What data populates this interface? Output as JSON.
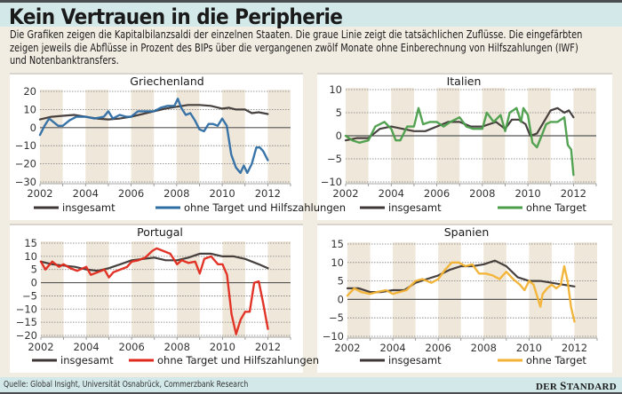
{
  "header": {
    "title": "Kein Vertrauen in die Peripherie",
    "intro_lines": [
      "Die Grafiken zeigen die Kapitalbilanzsaldi der einzelnen Staaten. Die graue Linie zeigt die tatsächlichen Zuflüsse. Die eingefärbten",
      "zeigen jeweils die Abflüsse in Prozent des BIPs über die vergangenen zwölf Monate ohne Einberechnung von Hilfszahlungen (IWF)",
      "und Notenbanktransfers."
    ]
  },
  "footer": {
    "source": "Quelle: Global Insight, Universität Osnabrück, Commerzbank Research",
    "brand_prefix": "DER",
    "brand_initial": "S",
    "brand_rest": "TANDARD"
  },
  "colors": {
    "insgesamt": "#3d3735",
    "griechenland": "#2e6da4",
    "italien": "#4a9e4a",
    "portugal": "#e02a1e",
    "spanien": "#f2b233",
    "band": "#efe8da",
    "grid": "#7a7a7a"
  },
  "chart_data": [
    {
      "type": "line",
      "title": "Griechenland",
      "xlabel": "",
      "ylabel": "",
      "xlim": [
        2002,
        2013
      ],
      "ylim": [
        -30,
        20
      ],
      "yticks": [
        20,
        10,
        0,
        -10,
        -20,
        -30
      ],
      "xticks": [
        2002,
        2004,
        2006,
        2008,
        2010,
        2012
      ],
      "grid": true,
      "legend_position": "bottom",
      "series": [
        {
          "name": "insgesamt",
          "color_key": "insgesamt",
          "x": [
            2002.0,
            2002.5,
            2003.0,
            2003.5,
            2004.0,
            2004.5,
            2005.0,
            2005.5,
            2006.0,
            2006.5,
            2007.0,
            2007.5,
            2008.0,
            2008.5,
            2009.0,
            2009.5,
            2010.0,
            2010.3,
            2010.6,
            2011.0,
            2011.3,
            2011.6,
            2012.0
          ],
          "values": [
            4.5,
            6,
            6.5,
            7,
            6,
            5,
            4.5,
            5,
            6,
            7.5,
            9,
            10.5,
            11.5,
            12.5,
            12.5,
            12,
            10.5,
            11,
            10,
            10,
            8,
            8.5,
            7.5
          ]
        },
        {
          "name": "ohne Target und Hilfszahlungen",
          "color_key": "griechenland",
          "x": [
            2002.0,
            2002.2,
            2002.4,
            2002.6,
            2002.8,
            2003.0,
            2003.3,
            2003.6,
            2004.0,
            2004.4,
            2004.8,
            2005.0,
            2005.2,
            2005.5,
            2005.8,
            2006.0,
            2006.3,
            2006.6,
            2007.0,
            2007.3,
            2007.6,
            2007.9,
            2008.05,
            2008.2,
            2008.4,
            2008.6,
            2008.8,
            2009.0,
            2009.2,
            2009.4,
            2009.6,
            2009.8,
            2010.0,
            2010.2,
            2010.4,
            2010.6,
            2010.8,
            2010.95,
            2011.1,
            2011.3,
            2011.5,
            2011.65,
            2011.8,
            2012.0
          ],
          "values": [
            -4,
            1,
            5,
            3,
            1,
            1,
            4,
            6,
            6,
            5,
            6,
            9,
            5,
            7,
            6,
            6,
            9,
            9,
            9,
            11,
            12,
            12,
            16,
            11,
            7,
            8,
            4,
            -1,
            -2,
            2,
            2,
            1,
            5,
            1,
            -15,
            -22,
            -25,
            -21,
            -25,
            -20,
            -11,
            -11,
            -13,
            -18
          ]
        }
      ]
    },
    {
      "type": "line",
      "title": "Italien",
      "xlabel": "",
      "ylabel": "",
      "xlim": [
        2002,
        2013
      ],
      "ylim": [
        -10,
        10
      ],
      "yticks": [
        10,
        5,
        0,
        -5,
        -10
      ],
      "xticks": [
        2002,
        2004,
        2006,
        2008,
        2010,
        2012
      ],
      "grid": true,
      "legend_position": "bottom",
      "series": [
        {
          "name": "insgesamt",
          "color_key": "insgesamt",
          "x": [
            2002.0,
            2002.5,
            2003.0,
            2003.5,
            2004.0,
            2004.5,
            2005.0,
            2005.5,
            2006.0,
            2006.5,
            2007.0,
            2007.5,
            2008.0,
            2008.3,
            2008.6,
            2009.0,
            2009.3,
            2009.6,
            2009.9,
            2010.1,
            2010.4,
            2010.7,
            2011.0,
            2011.3,
            2011.6,
            2011.8,
            2012.0
          ],
          "values": [
            -1,
            -0.5,
            -0.5,
            1.5,
            2,
            1.5,
            1,
            1,
            2,
            3,
            3,
            2,
            2,
            2.5,
            3,
            1.5,
            3.5,
            3.5,
            2.5,
            0,
            0.5,
            3,
            5.5,
            6,
            5,
            5.5,
            4
          ]
        },
        {
          "name": "ohne Target",
          "color_key": "italien",
          "x": [
            2002.0,
            2002.3,
            2002.6,
            2003.0,
            2003.3,
            2003.7,
            2004.0,
            2004.2,
            2004.4,
            2004.7,
            2005.0,
            2005.2,
            2005.4,
            2005.7,
            2006.0,
            2006.3,
            2006.6,
            2007.0,
            2007.3,
            2007.6,
            2008.0,
            2008.2,
            2008.5,
            2008.8,
            2009.0,
            2009.2,
            2009.5,
            2009.7,
            2009.8,
            2010.0,
            2010.2,
            2010.4,
            2010.6,
            2010.8,
            2011.0,
            2011.3,
            2011.6,
            2011.75,
            2011.9,
            2012.0
          ],
          "values": [
            0,
            -1,
            -1.5,
            -1,
            2,
            3,
            1.5,
            -1,
            -1,
            2,
            2,
            6,
            2.5,
            3,
            3,
            2,
            3,
            4,
            2,
            1.5,
            1.5,
            5,
            3,
            4.5,
            1,
            5,
            6,
            3,
            6,
            4.5,
            -1.5,
            -2.5,
            0,
            2.5,
            3,
            3,
            4,
            -2,
            -3,
            -8.5
          ]
        }
      ]
    },
    {
      "type": "line",
      "title": "Portugal",
      "xlabel": "",
      "ylabel": "",
      "xlim": [
        2002,
        2013
      ],
      "ylim": [
        -20,
        15
      ],
      "yticks": [
        15,
        10,
        5,
        0,
        -5,
        -10,
        -15,
        -20
      ],
      "xticks": [
        2002,
        2004,
        2006,
        2008,
        2010,
        2012
      ],
      "grid": true,
      "legend_position": "bottom",
      "series": [
        {
          "name": "insgesamt",
          "color_key": "insgesamt",
          "x": [
            2002.0,
            2002.5,
            2003.0,
            2003.5,
            2004.0,
            2004.5,
            2005.0,
            2005.5,
            2006.0,
            2006.5,
            2007.0,
            2007.5,
            2008.0,
            2008.5,
            2009.0,
            2009.5,
            2010.0,
            2010.5,
            2011.0,
            2011.3,
            2011.6,
            2012.0
          ],
          "values": [
            8,
            7,
            6.5,
            6,
            5,
            4.5,
            5.5,
            7,
            8.5,
            9,
            9.5,
            8.5,
            8.5,
            9.5,
            11,
            11,
            10,
            10,
            9,
            8,
            7,
            5.5
          ]
        },
        {
          "name": "ohne Target und Hilfszahlungen",
          "color_key": "portugal",
          "x": [
            2002.0,
            2002.2,
            2002.5,
            2002.8,
            2003.0,
            2003.3,
            2003.6,
            2004.0,
            2004.2,
            2004.5,
            2004.8,
            2005.0,
            2005.2,
            2005.5,
            2005.8,
            2006.0,
            2006.3,
            2006.6,
            2006.9,
            2007.1,
            2007.4,
            2007.7,
            2008.0,
            2008.2,
            2008.5,
            2008.8,
            2009.0,
            2009.2,
            2009.5,
            2009.8,
            2010.0,
            2010.2,
            2010.4,
            2010.6,
            2010.8,
            2011.0,
            2011.2,
            2011.4,
            2011.6,
            2011.8,
            2012.0
          ],
          "values": [
            8,
            5,
            8,
            6,
            7,
            5.5,
            4.5,
            6,
            3,
            4,
            5,
            2,
            4,
            5,
            6,
            8,
            8.5,
            9.5,
            12,
            13,
            12,
            11,
            7,
            8.5,
            7.5,
            8,
            3.5,
            9,
            10,
            7,
            7,
            3,
            -12,
            -19.5,
            -14,
            -11,
            -11,
            0,
            0.5,
            -8,
            -17.5
          ]
        }
      ]
    },
    {
      "type": "line",
      "title": "Spanien",
      "xlabel": "",
      "ylabel": "",
      "xlim": [
        2002,
        2013
      ],
      "ylim": [
        -10,
        15
      ],
      "yticks": [
        15,
        10,
        5,
        0,
        -5,
        -10
      ],
      "xticks": [
        2002,
        2004,
        2006,
        2008,
        2010,
        2012
      ],
      "grid": true,
      "legend_position": "bottom",
      "series": [
        {
          "name": "insgesamt",
          "color_key": "insgesamt",
          "x": [
            2002.0,
            2002.5,
            2003.0,
            2003.5,
            2004.0,
            2004.5,
            2005.0,
            2005.5,
            2006.0,
            2006.5,
            2007.0,
            2007.5,
            2008.0,
            2008.5,
            2009.0,
            2009.5,
            2010.0,
            2010.5,
            2011.0,
            2011.5,
            2012.0
          ],
          "values": [
            3,
            3,
            2,
            2,
            2.5,
            2.5,
            4.5,
            5.5,
            6.5,
            8,
            9,
            9,
            9.5,
            10.5,
            9,
            6,
            5,
            5,
            4.5,
            4,
            3.5
          ]
        },
        {
          "name": "ohne Target",
          "color_key": "spanien",
          "x": [
            2002.0,
            2002.3,
            2002.6,
            2003.0,
            2003.3,
            2003.7,
            2004.0,
            2004.3,
            2004.6,
            2005.0,
            2005.3,
            2005.7,
            2006.0,
            2006.3,
            2006.6,
            2006.9,
            2007.2,
            2007.5,
            2007.8,
            2008.1,
            2008.4,
            2008.7,
            2009.0,
            2009.3,
            2009.6,
            2009.8,
            2010.0,
            2010.2,
            2010.4,
            2010.5,
            2010.6,
            2010.8,
            2011.0,
            2011.2,
            2011.4,
            2011.55,
            2011.7,
            2011.85,
            2012.0
          ],
          "values": [
            1,
            3,
            2,
            1.5,
            2,
            2.5,
            1.5,
            2,
            2.5,
            5,
            5.5,
            4.5,
            5.5,
            8,
            10,
            10,
            9,
            9.5,
            7,
            7,
            6.5,
            5.5,
            7.5,
            5.5,
            4,
            2.5,
            5,
            4,
            0,
            -2,
            1.5,
            3,
            4,
            3,
            4,
            9,
            5,
            -2,
            -6
          ]
        }
      ]
    }
  ]
}
